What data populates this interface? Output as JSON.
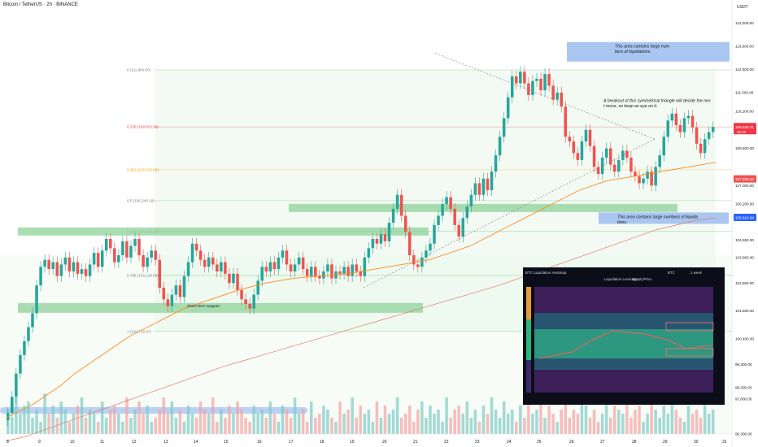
{
  "header": {
    "title": "Bitcoin / TetherUS · 2h · BINANCE",
    "currency": "USDT"
  },
  "colors": {
    "fib_line": "#a5d6a7",
    "fib_label_red": "#f23645",
    "fib_label_orange": "#ff9800",
    "support_zone": "#8fd19a",
    "liquidity_box": "#a9c6f0",
    "candle_up": "#26a69a",
    "candle_down": "#ef5350",
    "ma_fast": "#ff8a1f",
    "ma_slow": "#e8786a"
  },
  "chart_data": {
    "type": "line",
    "title": "Bitcoin / TetherUS · 2h · BINANCE",
    "x_tick_labels": [
      "8",
      "9",
      "10",
      "11",
      "12",
      "13",
      "14",
      "15",
      "16",
      "17",
      "18",
      "19",
      "20",
      "21",
      "22",
      "23",
      "24",
      "25",
      "26",
      "27",
      "28",
      "29",
      "30",
      "31"
    ],
    "y_tick_labels": [
      "114,000.00",
      "113,000.00",
      "112,000.00",
      "111,000.00",
      "110,200.00",
      "108,600.00",
      "107,000.00",
      "106,200.00",
      "104,650.00",
      "103,900.00",
      "102,800.00",
      "101,600.00",
      "100,400.00",
      "99,300.00",
      "98,300.00",
      "97,800.00",
      "96,300.00"
    ],
    "ylim": [
      96300,
      114500
    ],
    "price_tags": [
      {
        "label": "109,520.01",
        "sub": "25:29",
        "value": 109520,
        "color": "#f23645"
      },
      {
        "label": "107,265.94",
        "value": 107266,
        "color": "#ef5350"
      },
      {
        "label": "105,610.94",
        "value": 105611,
        "color": "#2962ff"
      }
    ],
    "fib_levels": [
      {
        "label": "0 (111,980.00)",
        "value": 111980,
        "color": "#787b86"
      },
      {
        "label": "0.236 (109,522.26)",
        "value": 109522,
        "color": "#f23645"
      },
      {
        "label": "0.382 (107,678.06)",
        "value": 107678,
        "color": "#ff9800"
      },
      {
        "label": "0.5 (106,349.19)",
        "value": 106349,
        "color": "#787b86"
      },
      {
        "label": "0.618 (105,020.31)",
        "value": 105020,
        "color": "#787b86"
      },
      {
        "label": "0.786 (103,128.05)",
        "value": 103128,
        "color": "#787b86"
      },
      {
        "label": "1 (100,718.37)",
        "value": 100718,
        "color": "#787b86"
      }
    ],
    "annotations": [
      "This area contains large numbers of liquidations.",
      "A breakout of this symmetrical triangle will decide the next move, so keep an eye on it.",
      "This area contains large numbers of liquidations.",
      "Short-Term Support"
    ],
    "candles_close": [
      97200,
      97900,
      98900,
      99700,
      100300,
      100900,
      101500,
      102700,
      103500,
      103800,
      103400,
      103700,
      103100,
      103600,
      103900,
      103300,
      103700,
      103200,
      103400,
      103100,
      103600,
      104100,
      103500,
      104200,
      104700,
      104300,
      103700,
      104000,
      104600,
      103900,
      104400,
      104700,
      104000,
      103500,
      103900,
      104200,
      103800,
      102600,
      102100,
      101800,
      102300,
      102700,
      102200,
      103100,
      103700,
      104500,
      104200,
      103800,
      103500,
      103900,
      103600,
      103300,
      103700,
      103200,
      102800,
      103200,
      102500,
      102100,
      101900,
      101700,
      102300,
      102900,
      103500,
      103300,
      103700,
      103400,
      103900,
      104200,
      103600,
      103300,
      103600,
      103900,
      103400,
      103100,
      103500,
      103100,
      103000,
      103300,
      103600,
      103000,
      103300,
      103200,
      103500,
      103100,
      103600,
      103300,
      103100,
      103900,
      104300,
      104700,
      104500,
      104900,
      104600,
      105400,
      106000,
      106600,
      105700,
      105000,
      104000,
      103600,
      103500,
      103900,
      104200,
      104500,
      105300,
      105700,
      106200,
      106500,
      106000,
      105300,
      104800,
      105600,
      106100,
      106600,
      107100,
      106600,
      107300,
      106800,
      107600,
      108300,
      109100,
      109900,
      110800,
      111700,
      111400,
      111900,
      111400,
      110900,
      111500,
      111600,
      111100,
      111800,
      111300,
      110700,
      111000,
      110400,
      109100,
      108900,
      108400,
      108100,
      108900,
      109400,
      108700,
      107800,
      107500,
      108200,
      108600,
      107900,
      107600,
      108100,
      108500,
      108200,
      107600,
      107400,
      107100,
      107300,
      107600,
      107000,
      107800,
      108300,
      109100,
      109800,
      110100,
      109600,
      109300,
      109900,
      110000,
      109500,
      108800,
      108400,
      109000,
      109300,
      109520
    ],
    "ma_fast_values": [
      97000,
      97300,
      97600,
      98000,
      98400,
      98900,
      99300,
      99700,
      100100,
      100500,
      100800,
      101100,
      101400,
      101700,
      101900,
      102100,
      102300,
      102500,
      102650,
      102800,
      102900,
      103000,
      103050,
      103100,
      103150,
      103200,
      103300,
      103400,
      103500,
      103600,
      103700,
      103800,
      104000,
      104200,
      104400,
      104700,
      105000,
      105300,
      105600,
      105900,
      106200,
      106500,
      106800,
      107000,
      107200,
      107300,
      107400,
      107500,
      107600,
      107700,
      107800,
      107900,
      108000
    ],
    "ma_slow_values": [
      96000,
      96200,
      96500,
      96800,
      97100,
      97400,
      97700,
      98000,
      98300,
      98600,
      98900,
      99200,
      99450,
      99700,
      99950,
      100200,
      100450,
      100700,
      100950,
      101200,
      101450,
      101700,
      101950,
      102200,
      102450,
      102700,
      103000,
      103300,
      103600,
      103900,
      104200,
      104500,
      104800,
      105100,
      105300,
      105500,
      105611
    ],
    "volumes": [
      6,
      4,
      9,
      5,
      7,
      8,
      4,
      6,
      3,
      10,
      5,
      7,
      4,
      8,
      6,
      3,
      5,
      7,
      9,
      4,
      6,
      5,
      3,
      8,
      4,
      6,
      7,
      5,
      3,
      9,
      4,
      6,
      8,
      5,
      7,
      3,
      4,
      6,
      9,
      5,
      8,
      4,
      6,
      3,
      7,
      5,
      4,
      8,
      6,
      5,
      9,
      3,
      6,
      4,
      7,
      5,
      8,
      6,
      4,
      3,
      7,
      5,
      6,
      4,
      8,
      5,
      3,
      7,
      6,
      4,
      9,
      5,
      6,
      3,
      8,
      4,
      5,
      7,
      6,
      4,
      3,
      8,
      5,
      6,
      9,
      4,
      7,
      5,
      6,
      3,
      8,
      4,
      7,
      5,
      6,
      9,
      4,
      5,
      7,
      3,
      6,
      8,
      4,
      7,
      5,
      6,
      3,
      9,
      4,
      6,
      7,
      5,
      8,
      4,
      6,
      3,
      7,
      5,
      9,
      6,
      4,
      8,
      5,
      6,
      3,
      7,
      4,
      9,
      5,
      6,
      8,
      4,
      7,
      5,
      3,
      6,
      9,
      4,
      6,
      5,
      8,
      7,
      4,
      6,
      3,
      5,
      9,
      4,
      7,
      6,
      5,
      8,
      4,
      6,
      7,
      3,
      5,
      9,
      6,
      4,
      7,
      5,
      8,
      6,
      4,
      3,
      7,
      5,
      6,
      4,
      8,
      5,
      6
    ],
    "legend": "top-left",
    "grid": false
  },
  "heatmap": {
    "title": "BTC Liquidation Heatmap",
    "legend_items": [
      "Liquidation Leverage",
      "Supply/Price"
    ],
    "tabs": [
      "BTC",
      "1 week"
    ]
  }
}
